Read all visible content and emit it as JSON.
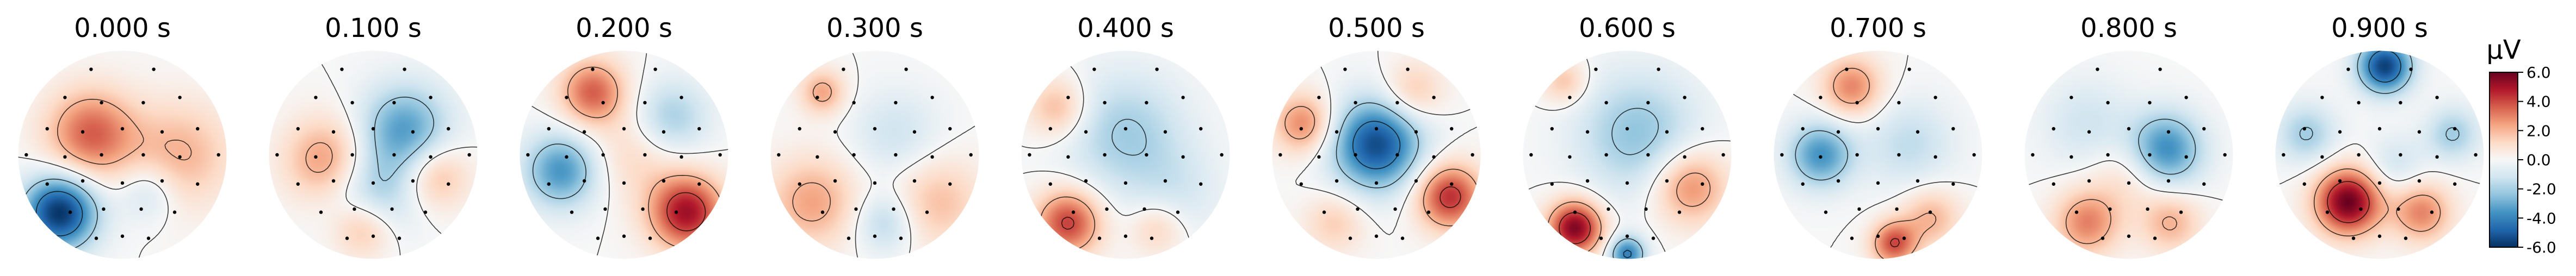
{
  "figure": {
    "colormap": [
      "#053061",
      "#2166ac",
      "#4393c3",
      "#92c5de",
      "#d1e5f0",
      "#f7f7f7",
      "#fddbc7",
      "#f4a582",
      "#d6604d",
      "#b2182b",
      "#67001f"
    ],
    "contour_color": "#000000",
    "sensor_color": "#000000"
  },
  "chart_data": {
    "type": "heatmap",
    "subtype": "eeg-topomap-series",
    "unit": "µV",
    "colorbar": {
      "label": "µV",
      "vmin": -6.0,
      "vmax": 6.0,
      "ticks": [
        "6.0",
        "4.0",
        "2.0",
        "0.0",
        "-2.0",
        "-4.0",
        "-6.0"
      ]
    },
    "maps": [
      {
        "title": "0.000 s",
        "time": 0.0,
        "blobs": [
          [
            -0.3,
            -0.2,
            0.6,
            0.3
          ],
          [
            -0.6,
            0.55,
            -1.0,
            0.25
          ],
          [
            0.55,
            0.0,
            0.35,
            0.35
          ],
          [
            0.25,
            0.35,
            -0.25,
            0.2
          ]
        ]
      },
      {
        "title": "0.100 s",
        "time": 0.1,
        "blobs": [
          [
            0.3,
            -0.25,
            -0.55,
            0.3
          ],
          [
            -0.45,
            0.05,
            0.45,
            0.28
          ],
          [
            0.6,
            0.2,
            0.35,
            0.22
          ],
          [
            -0.1,
            0.7,
            0.35,
            0.2
          ],
          [
            0.0,
            0.35,
            -0.35,
            0.3
          ]
        ]
      },
      {
        "title": "0.200 s",
        "time": 0.2,
        "blobs": [
          [
            -0.3,
            -0.6,
            0.6,
            0.22
          ],
          [
            0.6,
            0.55,
            0.85,
            0.25
          ],
          [
            -0.6,
            0.15,
            -0.6,
            0.25
          ],
          [
            0.45,
            -0.35,
            -0.35,
            0.25
          ],
          [
            0.1,
            0.0,
            0.2,
            0.3
          ]
        ]
      },
      {
        "title": "0.300 s",
        "time": 0.3,
        "blobs": [
          [
            -0.5,
            -0.6,
            0.4,
            0.15
          ],
          [
            -0.6,
            0.45,
            0.4,
            0.3
          ],
          [
            0.6,
            0.45,
            0.3,
            0.3
          ],
          [
            0.1,
            0.65,
            -0.3,
            0.2
          ],
          [
            0.2,
            -0.2,
            -0.2,
            0.3
          ]
        ]
      },
      {
        "title": "0.400 s",
        "time": 0.4,
        "blobs": [
          [
            -0.55,
            0.65,
            0.7,
            0.22
          ],
          [
            0.0,
            -0.2,
            -0.35,
            0.4
          ],
          [
            -0.65,
            -0.45,
            0.35,
            0.2
          ],
          [
            0.5,
            0.35,
            -0.15,
            0.3
          ],
          [
            0.3,
            0.7,
            0.25,
            0.18
          ]
        ]
      },
      {
        "title": "0.500 s",
        "time": 0.5,
        "blobs": [
          [
            0.0,
            -0.1,
            -0.9,
            0.3
          ],
          [
            0.7,
            0.4,
            0.75,
            0.22
          ],
          [
            -0.7,
            -0.3,
            0.5,
            0.2
          ],
          [
            -0.4,
            0.65,
            0.25,
            0.2
          ],
          [
            0.35,
            -0.6,
            0.3,
            0.2
          ]
        ]
      },
      {
        "title": "0.600 s",
        "time": 0.6,
        "blobs": [
          [
            -0.5,
            0.7,
            0.95,
            0.18
          ],
          [
            0.0,
            0.95,
            -0.7,
            0.12
          ],
          [
            0.6,
            0.3,
            0.5,
            0.25
          ],
          [
            0.1,
            -0.2,
            -0.4,
            0.4
          ],
          [
            -0.6,
            -0.7,
            0.3,
            0.15
          ]
        ]
      },
      {
        "title": "0.700 s",
        "time": 0.7,
        "blobs": [
          [
            -0.25,
            -0.65,
            0.5,
            0.2
          ],
          [
            -0.55,
            0.0,
            -0.6,
            0.22
          ],
          [
            0.15,
            0.85,
            0.65,
            0.15
          ],
          [
            0.5,
            0.6,
            0.35,
            0.2
          ],
          [
            0.3,
            -0.1,
            -0.25,
            0.3
          ]
        ]
      },
      {
        "title": "0.800 s",
        "time": 0.8,
        "blobs": [
          [
            0.35,
            -0.05,
            -0.65,
            0.25
          ],
          [
            -0.4,
            0.65,
            0.5,
            0.22
          ],
          [
            0.4,
            0.65,
            0.35,
            0.2
          ],
          [
            -0.4,
            -0.3,
            -0.2,
            0.3
          ],
          [
            0.0,
            0.2,
            0.2,
            0.25
          ]
        ]
      },
      {
        "title": "0.900 s",
        "time": 0.9,
        "blobs": [
          [
            0.05,
            -0.85,
            -0.95,
            0.18
          ],
          [
            -0.3,
            0.45,
            1.0,
            0.22
          ],
          [
            0.4,
            0.55,
            0.5,
            0.2
          ],
          [
            -0.7,
            -0.2,
            -0.35,
            0.2
          ],
          [
            0.7,
            -0.2,
            -0.35,
            0.18
          ],
          [
            0.15,
            0.1,
            -0.2,
            0.2
          ]
        ]
      }
    ],
    "sensors": [
      [
        -0.3,
        -0.82
      ],
      [
        0.3,
        -0.82
      ],
      [
        -0.55,
        -0.55
      ],
      [
        -0.2,
        -0.5
      ],
      [
        0.2,
        -0.5
      ],
      [
        0.55,
        -0.55
      ],
      [
        -0.72,
        -0.25
      ],
      [
        -0.38,
        -0.22
      ],
      [
        0.0,
        -0.25
      ],
      [
        0.38,
        -0.22
      ],
      [
        0.72,
        -0.25
      ],
      [
        -0.92,
        0.0
      ],
      [
        -0.55,
        0.02
      ],
      [
        -0.2,
        0.0
      ],
      [
        0.2,
        0.0
      ],
      [
        0.55,
        0.02
      ],
      [
        0.92,
        0.0
      ],
      [
        -0.72,
        0.28
      ],
      [
        -0.38,
        0.25
      ],
      [
        0.0,
        0.27
      ],
      [
        0.38,
        0.25
      ],
      [
        0.72,
        0.28
      ],
      [
        -0.5,
        0.55
      ],
      [
        -0.18,
        0.52
      ],
      [
        0.18,
        0.52
      ],
      [
        0.5,
        0.55
      ],
      [
        -0.25,
        0.8
      ],
      [
        0.0,
        0.78
      ],
      [
        0.25,
        0.8
      ]
    ]
  }
}
